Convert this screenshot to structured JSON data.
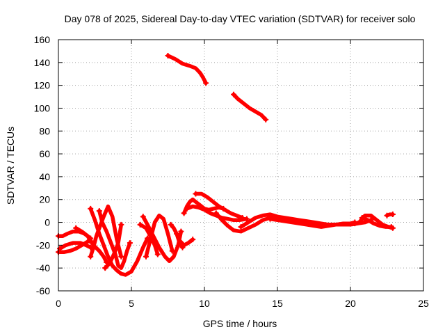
{
  "chart_data": {
    "type": "scatter",
    "title": "Day 078 of 2025, Sidereal Day-to-day VTEC variation (SDTVAR) for receiver solo",
    "xlabel": "GPS time / hours",
    "ylabel": "SDTVAR / TECUs",
    "xlim": [
      0,
      25
    ],
    "ylim": [
      -60,
      160
    ],
    "xticks": [
      0,
      5,
      10,
      15,
      20,
      25
    ],
    "yticks": [
      -60,
      -40,
      -20,
      0,
      20,
      40,
      60,
      80,
      100,
      120,
      140,
      160
    ],
    "grid": true,
    "marker": "plus",
    "color": "#ff0000",
    "series": [
      {
        "name": "arc-high-1",
        "x": [
          7.5,
          8.0,
          8.5,
          9.0,
          9.4,
          9.7,
          9.9,
          10.1
        ],
        "y": [
          146,
          143,
          139,
          137,
          135,
          131,
          127,
          122
        ]
      },
      {
        "name": "arc-high-2",
        "x": [
          12.0,
          12.3,
          12.7,
          13.1,
          13.5,
          13.9,
          14.2
        ],
        "y": [
          112,
          108,
          104,
          100,
          97,
          94,
          90
        ]
      },
      {
        "name": "arc-1",
        "x": [
          0.0,
          0.3,
          0.6,
          1.0,
          1.4,
          1.8,
          2.1,
          2.3
        ],
        "y": [
          -12,
          -12,
          -10,
          -8,
          -8,
          -10,
          -13,
          -18
        ]
      },
      {
        "name": "arc-2",
        "x": [
          0.1,
          0.5,
          1.0,
          1.5,
          1.9,
          2.2
        ],
        "y": [
          -23,
          -20,
          -18,
          -18,
          -20,
          -22
        ]
      },
      {
        "name": "arc-3",
        "x": [
          0.0,
          0.4,
          0.8,
          1.2,
          1.6,
          2.0,
          2.2
        ],
        "y": [
          -26,
          -26,
          -25,
          -23,
          -20,
          -17,
          -14
        ]
      },
      {
        "name": "arc-4",
        "x": [
          1.2,
          1.6,
          2.0,
          2.4,
          2.8,
          3.1,
          3.3
        ],
        "y": [
          -5,
          -8,
          -12,
          -20,
          -25,
          -30,
          -35
        ]
      },
      {
        "name": "arc-5",
        "x": [
          2.2,
          2.5,
          2.8,
          3.1,
          3.4,
          3.7,
          4.0,
          4.3,
          4.6,
          5.0,
          5.4,
          5.8,
          6.1
        ],
        "y": [
          12,
          2,
          -10,
          -20,
          -30,
          -38,
          -42,
          -45,
          -46,
          -43,
          -34,
          -22,
          -14
        ]
      },
      {
        "name": "arc-6",
        "x": [
          2.2,
          2.4,
          2.6,
          2.8,
          3.1,
          3.4,
          3.7,
          4.0,
          4.3
        ],
        "y": [
          -30,
          -22,
          -12,
          -5,
          5,
          14,
          5,
          -15,
          -30
        ]
      },
      {
        "name": "arc-7",
        "x": [
          2.8,
          3.0,
          3.3,
          3.6,
          3.9,
          4.1,
          4.3,
          4.5,
          4.7,
          4.9
        ],
        "y": [
          10,
          0,
          -8,
          -18,
          -28,
          -38,
          -40,
          -34,
          -25,
          -18
        ]
      },
      {
        "name": "arc-8",
        "x": [
          3.2,
          3.5,
          3.8,
          4.1,
          4.3
        ],
        "y": [
          -40,
          -36,
          -28,
          -18,
          -2
        ]
      },
      {
        "name": "arc-9",
        "x": [
          5.6,
          6.0,
          6.3,
          6.6,
          6.8
        ],
        "y": [
          -2,
          -5,
          -12,
          -20,
          -28
        ]
      },
      {
        "name": "arc-10",
        "x": [
          5.8,
          6.1,
          6.5,
          6.9,
          7.3,
          7.6,
          7.9,
          8.2,
          8.4
        ],
        "y": [
          5,
          -2,
          -12,
          -22,
          -30,
          -34,
          -30,
          -20,
          -8
        ]
      },
      {
        "name": "arc-11",
        "x": [
          6.0,
          6.2,
          6.4,
          6.6,
          6.9,
          7.2,
          7.5,
          7.8
        ],
        "y": [
          -30,
          -20,
          -10,
          0,
          6,
          3,
          -10,
          -25
        ]
      },
      {
        "name": "arc-12",
        "x": [
          7.7,
          7.9,
          8.1,
          8.3,
          8.5
        ],
        "y": [
          -2,
          -5,
          -10,
          -18,
          -22
        ]
      },
      {
        "name": "arc-13",
        "x": [
          8.1,
          8.3,
          8.6,
          8.9,
          9.2
        ],
        "y": [
          -10,
          -16,
          -20,
          -18,
          -15
        ]
      },
      {
        "name": "arc-14",
        "x": [
          8.6,
          8.8,
          9.0,
          9.2,
          9.4,
          9.7,
          10.0,
          10.3,
          10.6,
          11.0,
          11.3
        ],
        "y": [
          8,
          14,
          18,
          20,
          18,
          15,
          12,
          11,
          12,
          13,
          12
        ]
      },
      {
        "name": "arc-15",
        "x": [
          9.4,
          9.8,
          10.2,
          10.6,
          11.0,
          11.4,
          11.8,
          12.2,
          12.6
        ],
        "y": [
          25,
          25,
          22,
          18,
          14,
          11,
          8,
          6,
          4
        ]
      },
      {
        "name": "arc-16",
        "x": [
          8.8,
          9.2,
          9.6,
          10.0,
          10.4,
          10.8,
          11.2,
          11.6,
          12.0,
          12.4,
          12.9
        ],
        "y": [
          12,
          14,
          13,
          11,
          8,
          6,
          4,
          3,
          2,
          2,
          3
        ]
      },
      {
        "name": "arc-17",
        "x": [
          10.8,
          11.2,
          11.6,
          12.0,
          12.5,
          13.0,
          13.5,
          14.0,
          14.5,
          15.0,
          15.5,
          16.0
        ],
        "y": [
          8,
          2,
          -3,
          -7,
          -8,
          -5,
          -2,
          2,
          4,
          3,
          2,
          2
        ]
      },
      {
        "name": "arc-18",
        "x": [
          12.5,
          13.0,
          13.5,
          14.0,
          14.5,
          15.0,
          15.5,
          16.0,
          16.5,
          17.0,
          17.5,
          18.0,
          18.5,
          19.0,
          19.5,
          20.0,
          20.3
        ],
        "y": [
          -4,
          0,
          4,
          6,
          7,
          5,
          4,
          3,
          2,
          1,
          0,
          -1,
          -2,
          -2,
          -1,
          -1,
          0
        ]
      },
      {
        "name": "arc-19",
        "x": [
          14.5,
          15.0,
          15.5,
          16.0,
          16.5,
          17.0,
          17.5,
          18.0,
          18.5,
          19.0,
          19.5,
          20.0,
          20.5,
          21.0,
          21.4
        ],
        "y": [
          3,
          2,
          1,
          0,
          -1,
          -2,
          -3,
          -4,
          -3,
          -2,
          -2,
          -2,
          -1,
          0,
          2
        ]
      },
      {
        "name": "arc-20",
        "x": [
          20.3,
          20.6,
          21.0,
          21.4,
          21.8,
          22.2,
          22.6,
          22.9
        ],
        "y": [
          -1,
          0,
          6,
          6,
          2,
          -2,
          -4,
          -5
        ]
      },
      {
        "name": "arc-21",
        "x": [
          20.8,
          21.2,
          21.6,
          22.0,
          22.4,
          22.8
        ],
        "y": [
          4,
          2,
          -1,
          -3,
          -4,
          -4
        ]
      },
      {
        "name": "arc-22",
        "x": [
          22.5,
          22.7,
          22.9
        ],
        "y": [
          6,
          7,
          7
        ]
      }
    ]
  }
}
